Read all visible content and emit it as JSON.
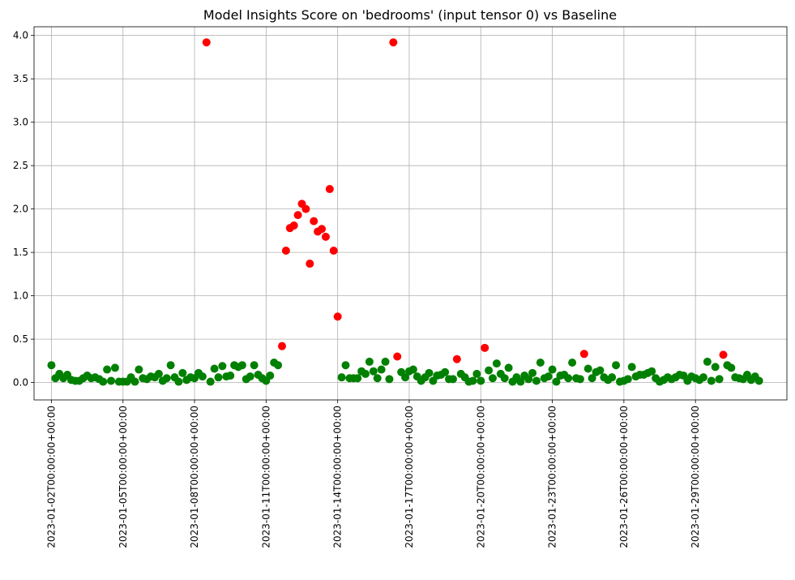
{
  "chart_data": {
    "type": "scatter",
    "title": "Model Insights Score on 'bedrooms' (input tensor 0) vs Baseline",
    "xlabel": "",
    "ylabel": "",
    "x_range": [
      "2023-01-01T06:30:00",
      "2023-02-01T20:00:00"
    ],
    "ylim": [
      -0.2,
      4.1
    ],
    "y_ticks": [
      0.0,
      0.5,
      1.0,
      1.5,
      2.0,
      2.5,
      3.0,
      3.5,
      4.0
    ],
    "y_tick_labels": [
      "0.0",
      "0.5",
      "1.0",
      "1.5",
      "2.0",
      "2.5",
      "3.0",
      "3.5",
      "4.0"
    ],
    "x_ticks": [
      "2023-01-02T00:00:00",
      "2023-01-05T00:00:00",
      "2023-01-08T00:00:00",
      "2023-01-11T00:00:00",
      "2023-01-14T00:00:00",
      "2023-01-17T00:00:00",
      "2023-01-20T00:00:00",
      "2023-01-23T00:00:00",
      "2023-01-26T00:00:00",
      "2023-01-29T00:00:00"
    ],
    "x_tick_labels": [
      "2023-01-02T00:00:00+00:00",
      "2023-01-05T00:00:00+00:00",
      "2023-01-08T00:00:00+00:00",
      "2023-01-11T00:00:00+00:00",
      "2023-01-14T00:00:00+00:00",
      "2023-01-17T00:00:00+00:00",
      "2023-01-20T00:00:00+00:00",
      "2023-01-23T00:00:00+00:00",
      "2023-01-26T00:00:00+00:00",
      "2023-01-29T00:00:00+00:00"
    ],
    "grid": true,
    "colors": {
      "normal": "#008000",
      "alert": "#ff0000"
    },
    "series": [
      {
        "color": "green",
        "points": [
          [
            "2023-01-02T00:00",
            0.2
          ],
          [
            "2023-01-02T04:00",
            0.05
          ],
          [
            "2023-01-02T08:00",
            0.1
          ],
          [
            "2023-01-02T12:00",
            0.05
          ],
          [
            "2023-01-02T16:00",
            0.09
          ],
          [
            "2023-01-02T20:00",
            0.03
          ],
          [
            "2023-01-03T00:00",
            0.02
          ],
          [
            "2023-01-03T04:00",
            0.02
          ],
          [
            "2023-01-03T08:00",
            0.05
          ],
          [
            "2023-01-03T12:00",
            0.08
          ],
          [
            "2023-01-03T16:00",
            0.05
          ],
          [
            "2023-01-03T20:00",
            0.06
          ],
          [
            "2023-01-04T00:00",
            0.04
          ],
          [
            "2023-01-04T04:00",
            0.01
          ],
          [
            "2023-01-04T08:00",
            0.15
          ],
          [
            "2023-01-04T12:00",
            0.02
          ],
          [
            "2023-01-04T16:00",
            0.17
          ],
          [
            "2023-01-04T20:00",
            0.01
          ],
          [
            "2023-01-05T00:00",
            0.01
          ],
          [
            "2023-01-05T04:00",
            0.01
          ],
          [
            "2023-01-05T08:00",
            0.06
          ],
          [
            "2023-01-05T12:00",
            0.01
          ],
          [
            "2023-01-05T16:00",
            0.15
          ],
          [
            "2023-01-05T20:00",
            0.05
          ],
          [
            "2023-01-06T00:00",
            0.04
          ],
          [
            "2023-01-06T04:00",
            0.07
          ],
          [
            "2023-01-06T08:00",
            0.06
          ],
          [
            "2023-01-06T12:00",
            0.1
          ],
          [
            "2023-01-06T16:00",
            0.02
          ],
          [
            "2023-01-06T20:00",
            0.05
          ],
          [
            "2023-01-07T00:00",
            0.2
          ],
          [
            "2023-01-07T04:00",
            0.06
          ],
          [
            "2023-01-07T08:00",
            0.01
          ],
          [
            "2023-01-07T12:00",
            0.11
          ],
          [
            "2023-01-07T16:00",
            0.03
          ],
          [
            "2023-01-07T20:00",
            0.06
          ],
          [
            "2023-01-08T00:00",
            0.05
          ],
          [
            "2023-01-08T04:00",
            0.11
          ],
          [
            "2023-01-08T08:00",
            0.07
          ],
          [
            "2023-01-08T16:00",
            0.01
          ],
          [
            "2023-01-08T20:00",
            0.16
          ],
          [
            "2023-01-09T00:00",
            0.06
          ],
          [
            "2023-01-09T04:00",
            0.19
          ],
          [
            "2023-01-09T08:00",
            0.07
          ],
          [
            "2023-01-09T12:00",
            0.08
          ],
          [
            "2023-01-09T16:00",
            0.2
          ],
          [
            "2023-01-09T20:00",
            0.18
          ],
          [
            "2023-01-10T00:00",
            0.2
          ],
          [
            "2023-01-10T04:00",
            0.04
          ],
          [
            "2023-01-10T08:00",
            0.07
          ],
          [
            "2023-01-10T12:00",
            0.2
          ],
          [
            "2023-01-10T16:00",
            0.09
          ],
          [
            "2023-01-10T20:00",
            0.05
          ],
          [
            "2023-01-11T00:00",
            0.02
          ],
          [
            "2023-01-11T04:00",
            0.08
          ],
          [
            "2023-01-11T08:00",
            0.23
          ],
          [
            "2023-01-11T12:00",
            0.2
          ],
          [
            "2023-01-14T04:00",
            0.06
          ],
          [
            "2023-01-14T08:00",
            0.2
          ],
          [
            "2023-01-14T12:00",
            0.05
          ],
          [
            "2023-01-14T16:00",
            0.05
          ],
          [
            "2023-01-14T20:00",
            0.05
          ],
          [
            "2023-01-15T00:00",
            0.13
          ],
          [
            "2023-01-15T04:00",
            0.1
          ],
          [
            "2023-01-15T08:00",
            0.24
          ],
          [
            "2023-01-15T12:00",
            0.13
          ],
          [
            "2023-01-15T16:00",
            0.05
          ],
          [
            "2023-01-15T20:00",
            0.15
          ],
          [
            "2023-01-16T00:00",
            0.24
          ],
          [
            "2023-01-16T04:00",
            0.04
          ],
          [
            "2023-01-16T16:00",
            0.12
          ],
          [
            "2023-01-16T20:00",
            0.06
          ],
          [
            "2023-01-17T00:00",
            0.13
          ],
          [
            "2023-01-17T04:00",
            0.15
          ],
          [
            "2023-01-17T08:00",
            0.07
          ],
          [
            "2023-01-17T12:00",
            0.02
          ],
          [
            "2023-01-17T16:00",
            0.06
          ],
          [
            "2023-01-17T20:00",
            0.11
          ],
          [
            "2023-01-18T00:00",
            0.02
          ],
          [
            "2023-01-18T04:00",
            0.08
          ],
          [
            "2023-01-18T08:00",
            0.09
          ],
          [
            "2023-01-18T12:00",
            0.12
          ],
          [
            "2023-01-18T16:00",
            0.04
          ],
          [
            "2023-01-18T20:00",
            0.04
          ],
          [
            "2023-01-19T04:00",
            0.1
          ],
          [
            "2023-01-19T08:00",
            0.06
          ],
          [
            "2023-01-19T12:00",
            0.01
          ],
          [
            "2023-01-19T16:00",
            0.02
          ],
          [
            "2023-01-19T20:00",
            0.1
          ],
          [
            "2023-01-20T00:00",
            0.02
          ],
          [
            "2023-01-20T08:00",
            0.14
          ],
          [
            "2023-01-20T12:00",
            0.05
          ],
          [
            "2023-01-20T16:00",
            0.22
          ],
          [
            "2023-01-20T20:00",
            0.1
          ],
          [
            "2023-01-21T00:00",
            0.05
          ],
          [
            "2023-01-21T04:00",
            0.17
          ],
          [
            "2023-01-21T08:00",
            0.01
          ],
          [
            "2023-01-21T12:00",
            0.06
          ],
          [
            "2023-01-21T16:00",
            0.01
          ],
          [
            "2023-01-21T20:00",
            0.08
          ],
          [
            "2023-01-22T00:00",
            0.04
          ],
          [
            "2023-01-22T04:00",
            0.11
          ],
          [
            "2023-01-22T08:00",
            0.02
          ],
          [
            "2023-01-22T12:00",
            0.23
          ],
          [
            "2023-01-22T16:00",
            0.05
          ],
          [
            "2023-01-22T20:00",
            0.07
          ],
          [
            "2023-01-23T00:00",
            0.15
          ],
          [
            "2023-01-23T04:00",
            0.01
          ],
          [
            "2023-01-23T08:00",
            0.08
          ],
          [
            "2023-01-23T12:00",
            0.09
          ],
          [
            "2023-01-23T16:00",
            0.05
          ],
          [
            "2023-01-23T20:00",
            0.23
          ],
          [
            "2023-01-24T00:00",
            0.05
          ],
          [
            "2023-01-24T04:00",
            0.04
          ],
          [
            "2023-01-24T12:00",
            0.16
          ],
          [
            "2023-01-24T16:00",
            0.05
          ],
          [
            "2023-01-24T20:00",
            0.12
          ],
          [
            "2023-01-25T00:00",
            0.14
          ],
          [
            "2023-01-25T04:00",
            0.06
          ],
          [
            "2023-01-25T08:00",
            0.03
          ],
          [
            "2023-01-25T12:00",
            0.06
          ],
          [
            "2023-01-25T16:00",
            0.2
          ],
          [
            "2023-01-25T20:00",
            0.01
          ],
          [
            "2023-01-26T00:00",
            0.02
          ],
          [
            "2023-01-26T04:00",
            0.04
          ],
          [
            "2023-01-26T08:00",
            0.18
          ],
          [
            "2023-01-26T12:00",
            0.07
          ],
          [
            "2023-01-26T16:00",
            0.09
          ],
          [
            "2023-01-26T20:00",
            0.09
          ],
          [
            "2023-01-27T00:00",
            0.11
          ],
          [
            "2023-01-27T04:00",
            0.13
          ],
          [
            "2023-01-27T08:00",
            0.05
          ],
          [
            "2023-01-27T12:00",
            0.01
          ],
          [
            "2023-01-27T16:00",
            0.03
          ],
          [
            "2023-01-27T20:00",
            0.06
          ],
          [
            "2023-01-28T00:00",
            0.04
          ],
          [
            "2023-01-28T04:00",
            0.06
          ],
          [
            "2023-01-28T08:00",
            0.09
          ],
          [
            "2023-01-28T12:00",
            0.08
          ],
          [
            "2023-01-28T16:00",
            0.02
          ],
          [
            "2023-01-28T20:00",
            0.07
          ],
          [
            "2023-01-29T00:00",
            0.05
          ],
          [
            "2023-01-29T04:00",
            0.03
          ],
          [
            "2023-01-29T08:00",
            0.06
          ],
          [
            "2023-01-29T12:00",
            0.24
          ],
          [
            "2023-01-29T16:00",
            0.02
          ],
          [
            "2023-01-29T20:00",
            0.18
          ],
          [
            "2023-01-30T00:00",
            0.04
          ],
          [
            "2023-01-30T08:00",
            0.2
          ],
          [
            "2023-01-30T12:00",
            0.17
          ],
          [
            "2023-01-30T16:00",
            0.06
          ],
          [
            "2023-01-30T20:00",
            0.05
          ],
          [
            "2023-01-31T00:00",
            0.04
          ],
          [
            "2023-01-31T04:00",
            0.09
          ],
          [
            "2023-01-31T08:00",
            0.03
          ],
          [
            "2023-01-31T12:00",
            0.07
          ],
          [
            "2023-01-31T16:00",
            0.02
          ]
        ]
      },
      {
        "color": "red",
        "points": [
          [
            "2023-01-08T12:00",
            3.92
          ],
          [
            "2023-01-11T16:00",
            0.42
          ],
          [
            "2023-01-11T20:00",
            1.52
          ],
          [
            "2023-01-12T00:00",
            1.78
          ],
          [
            "2023-01-12T04:00",
            1.81
          ],
          [
            "2023-01-12T08:00",
            1.93
          ],
          [
            "2023-01-12T12:00",
            2.06
          ],
          [
            "2023-01-12T16:00",
            2.0
          ],
          [
            "2023-01-12T20:00",
            1.37
          ],
          [
            "2023-01-13T00:00",
            1.86
          ],
          [
            "2023-01-13T04:00",
            1.74
          ],
          [
            "2023-01-13T08:00",
            1.77
          ],
          [
            "2023-01-13T12:00",
            1.68
          ],
          [
            "2023-01-13T16:00",
            2.23
          ],
          [
            "2023-01-13T20:00",
            1.52
          ],
          [
            "2023-01-14T00:00",
            0.76
          ],
          [
            "2023-01-16T08:00",
            3.92
          ],
          [
            "2023-01-16T12:00",
            0.3
          ],
          [
            "2023-01-19T00:00",
            0.27
          ],
          [
            "2023-01-20T04:00",
            0.4
          ],
          [
            "2023-01-24T08:00",
            0.33
          ],
          [
            "2023-01-30T04:00",
            0.32
          ]
        ]
      }
    ]
  }
}
